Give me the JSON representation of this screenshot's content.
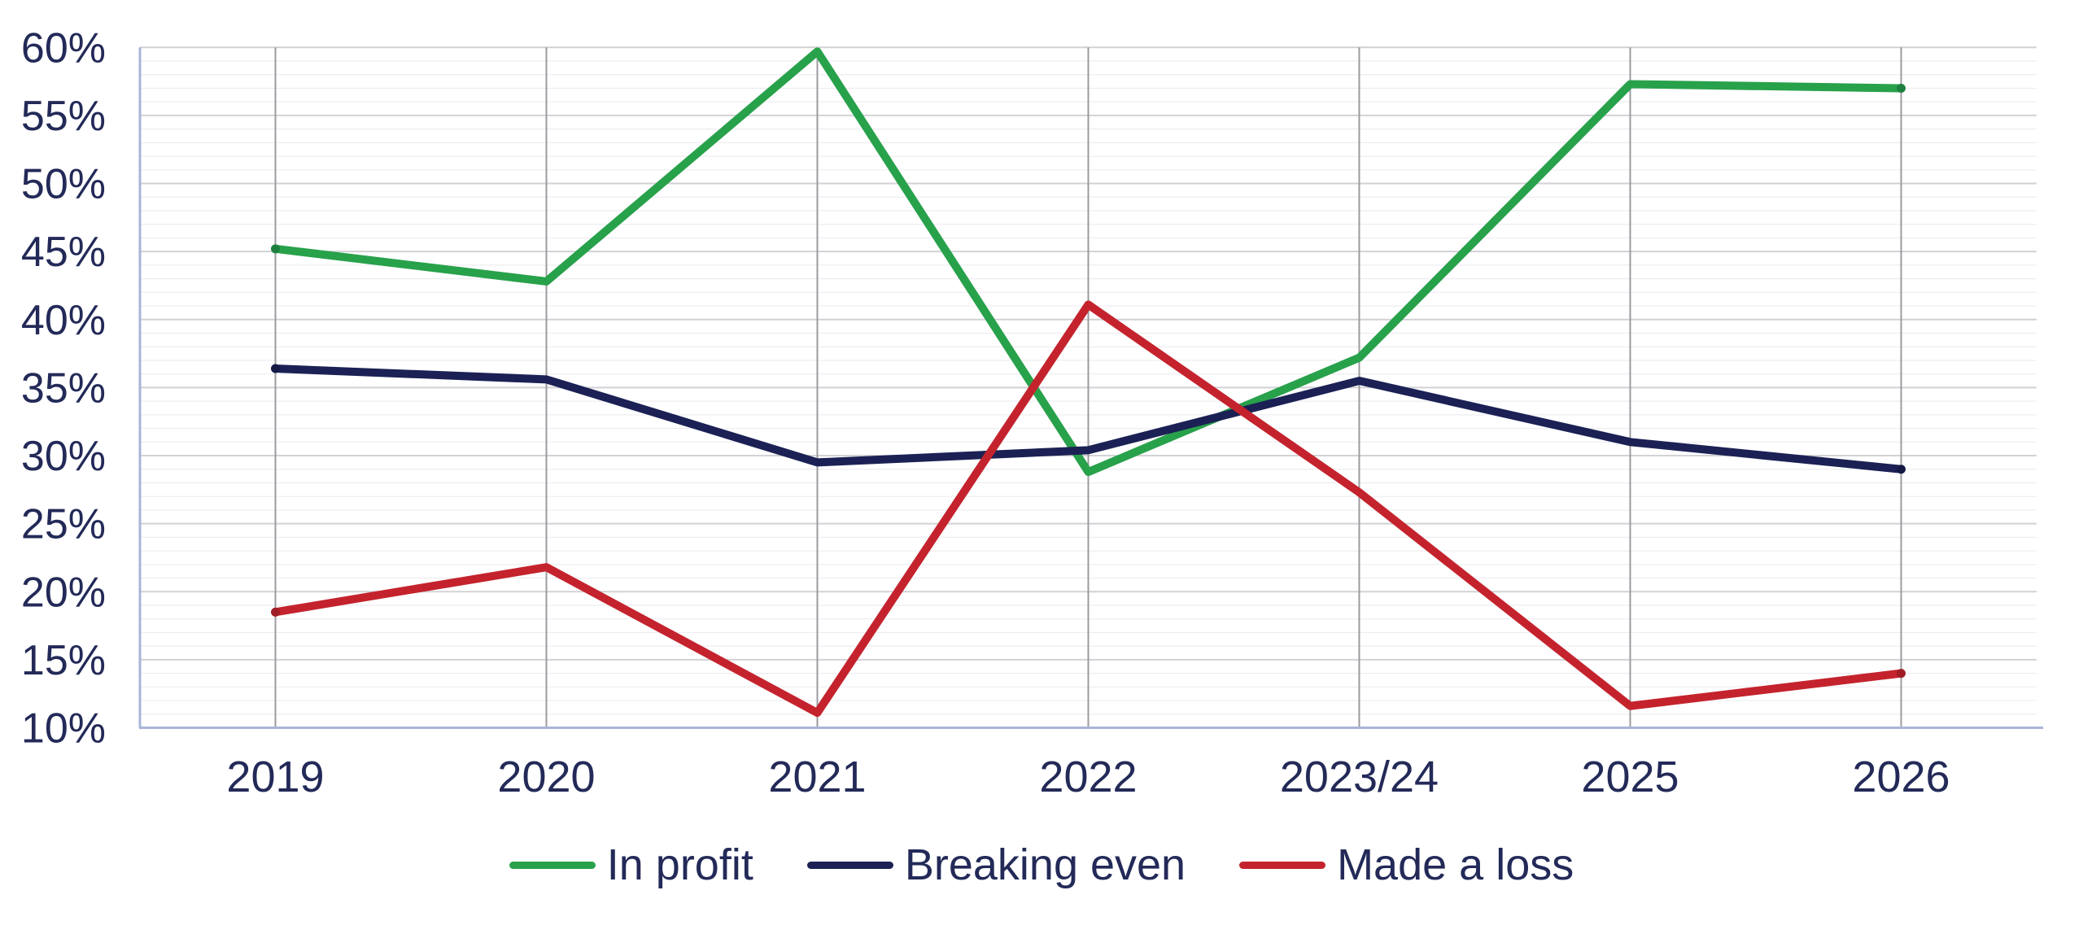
{
  "chart_data": {
    "type": "line",
    "title": "",
    "categories": [
      "2019",
      "2020",
      "2021",
      "2022",
      "2023/24",
      "2025",
      "2026"
    ],
    "series": [
      {
        "name": "In profit",
        "color": "#28a14b",
        "endpoint_color": "#1e8040",
        "values": [
          45.2,
          42.8,
          59.7,
          28.8,
          37.2,
          57.3,
          57.0
        ]
      },
      {
        "name": "Breaking even",
        "color": "#1b2154",
        "endpoint_color": "#141a44",
        "values": [
          36.4,
          35.6,
          29.5,
          30.4,
          35.5,
          31.0,
          29.0
        ]
      },
      {
        "name": "Made a loss",
        "color": "#c4232d",
        "endpoint_color": "#a01d26",
        "values": [
          18.5,
          21.8,
          11.1,
          41.1,
          27.3,
          11.6,
          14.0
        ]
      }
    ],
    "y_axis": {
      "min": 10,
      "max": 60,
      "major_step": 5,
      "minor_step": 1,
      "tick_labels": [
        "10%",
        "15%",
        "20%",
        "25%",
        "30%",
        "35%",
        "40%",
        "45%",
        "50%",
        "55%",
        "60%"
      ]
    },
    "x_axis": {
      "labels": [
        "2019",
        "2020",
        "2021",
        "2022",
        "2023/24",
        "2025",
        "2026"
      ]
    },
    "legend": {
      "position": "bottom",
      "items": [
        "In profit",
        "Breaking even",
        "Made a loss"
      ]
    },
    "grid": {
      "horizontal_major": true,
      "horizontal_minor": true,
      "vertical_category_lines": true
    },
    "colors": {
      "axis_line": "#a9b4d9",
      "major_gridline": "#d2d2d6",
      "minor_gridline": "#ededf1",
      "vertical_gridline": "#9b9ba0",
      "tick_text": "#232a58"
    }
  }
}
